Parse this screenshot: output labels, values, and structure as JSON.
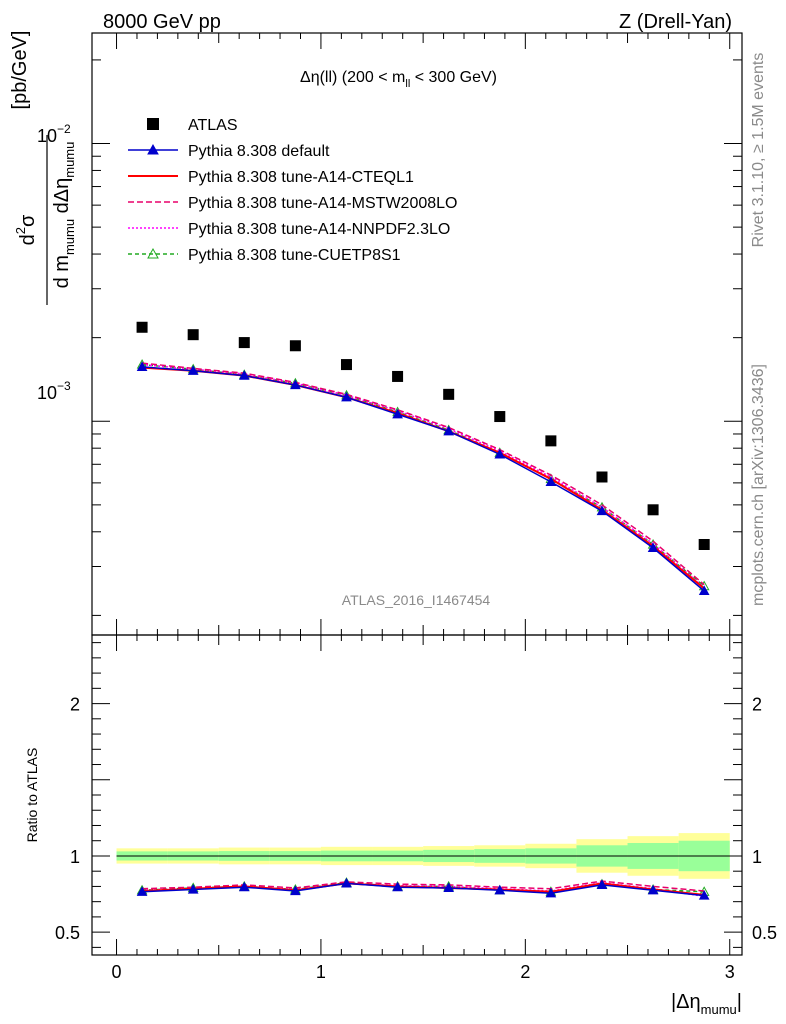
{
  "header": {
    "left": "8000 GeV pp",
    "right": "Z (Drell-Yan)"
  },
  "side_labels": {
    "rivet": "Rivet 3.1.10, ≥ 1.5M events",
    "mcplots": "mcplots.cern.ch [arXiv:1306.3436]"
  },
  "watermark": "ATLAS_2016_I1467454",
  "colors": {
    "atlas": "#000000",
    "default": "#0000cc",
    "cteql1": "#ff0000",
    "mstw": "#e8006a",
    "nnpdf": "#ff00ff",
    "cuetp": "#22aa22",
    "band_yellow": "#ffff99",
    "band_green": "#99ff99"
  },
  "chart_data": [
    {
      "type": "scatter",
      "panel": "main",
      "title": {
        "delta": "Δη(ll) (200 < m",
        "sub": "ll",
        "tail": " < 300 GeV)"
      },
      "ylabel": {
        "d2": "d",
        "sup2": "2",
        "sigma": "σ",
        "denom_d": "d m",
        "denom_sub1": "mumu",
        "denom_deta": " dΔη",
        "denom_sub2": "mumu",
        "unit": "[pb/GeV]"
      },
      "y_scale": "log",
      "ylim": [
        0.00017,
        0.025
      ],
      "xlim": [
        -0.12,
        3.06
      ],
      "y_tick_labels": {
        "major": [
          "10",
          "10"
        ],
        "major_exp": [
          "−3",
          "−2"
        ]
      },
      "x": [
        0.125,
        0.375,
        0.625,
        0.875,
        1.125,
        1.375,
        1.625,
        1.875,
        2.125,
        2.375,
        2.625,
        2.875
      ],
      "series": [
        {
          "name": "ATLAS",
          "key": "atlas",
          "marker": "square",
          "values": [
            0.00218,
            0.00205,
            0.00192,
            0.00187,
            0.0016,
            0.00145,
            0.00125,
            0.00104,
            0.00085,
            0.00063,
            0.00048,
            0.00036
          ]
        },
        {
          "name": "Pythia 8.308 default",
          "key": "default",
          "marker": "triangle",
          "dash": "",
          "values": [
            0.00157,
            0.00152,
            0.00146,
            0.00135,
            0.00122,
            0.00106,
            0.00092,
            0.00076,
            0.000605,
            0.000475,
            0.00035,
            0.000245
          ]
        },
        {
          "name": "Pythia 8.308 tune-A14-CTEQL1",
          "key": "cteql1",
          "marker": "none",
          "dash": "",
          "values": [
            0.00156,
            0.00152,
            0.00146,
            0.00135,
            0.00122,
            0.00107,
            0.00092,
            0.00077,
            0.00062,
            0.00048,
            0.000355,
            0.00025
          ]
        },
        {
          "name": "Pythia 8.308 tune-A14-MSTW2008LO",
          "key": "mstw",
          "marker": "none",
          "dash": "6,3",
          "values": [
            0.00162,
            0.00155,
            0.00149,
            0.00138,
            0.00125,
            0.0011,
            0.00095,
            0.00079,
            0.00064,
            0.0005,
            0.00037,
            0.000258
          ]
        },
        {
          "name": "Pythia 8.308 tune-A14-NNPDF2.3LO",
          "key": "nnpdf",
          "marker": "none",
          "dash": "2,2",
          "values": [
            0.0016,
            0.00154,
            0.00148,
            0.00137,
            0.00124,
            0.00109,
            0.00094,
            0.00078,
            0.00063,
            0.00049,
            0.000362,
            0.000252
          ]
        },
        {
          "name": "Pythia 8.308 tune-CUETP8S1",
          "key": "cuetp",
          "marker": "open-triangle",
          "dash": "4,3",
          "values": [
            0.0016,
            0.00154,
            0.00147,
            0.00137,
            0.00124,
            0.00108,
            0.00093,
            0.00077,
            0.00062,
            0.00049,
            0.00036,
            0.000255
          ]
        }
      ]
    },
    {
      "type": "line",
      "panel": "ratio",
      "ylabel": "Ratio to ATLAS",
      "xlabel": {
        "pre": "|Δη",
        "sub": "mumu",
        "post": "|"
      },
      "ylim": [
        0.35,
        2.45
      ],
      "xlim": [
        -0.12,
        3.06
      ],
      "y_ticks": [
        0.5,
        1,
        2
      ],
      "y_tick_labels": [
        "0.5",
        "1",
        "2"
      ],
      "x_ticks": [
        0,
        1,
        2,
        3
      ],
      "x_tick_labels": [
        "0",
        "1",
        "2",
        "3"
      ],
      "bin_edges": [
        0,
        0.25,
        0.5,
        0.75,
        1.0,
        1.25,
        1.5,
        1.75,
        2.0,
        2.25,
        2.5,
        2.75,
        3.0
      ],
      "band_yellow_halfwidth": [
        0.05,
        0.05,
        0.055,
        0.055,
        0.06,
        0.06,
        0.065,
        0.07,
        0.08,
        0.11,
        0.13,
        0.15
      ],
      "band_green_halfwidth": [
        0.03,
        0.03,
        0.032,
        0.032,
        0.035,
        0.035,
        0.04,
        0.045,
        0.05,
        0.07,
        0.085,
        0.1
      ],
      "series": [
        {
          "name": "Pythia 8.308 default",
          "key": "default",
          "marker": "triangle",
          "dash": "",
          "values": [
            0.765,
            0.78,
            0.795,
            0.77,
            0.82,
            0.795,
            0.79,
            0.775,
            0.755,
            0.81,
            0.775,
            0.74
          ]
        },
        {
          "name": "Pythia 8.308 tune-A14-CTEQL1",
          "key": "cteql1",
          "marker": "none",
          "dash": "",
          "values": [
            0.77,
            0.785,
            0.8,
            0.775,
            0.82,
            0.8,
            0.79,
            0.78,
            0.765,
            0.82,
            0.78,
            0.745
          ]
        },
        {
          "name": "Pythia 8.308 tune-A14-MSTW2008LO",
          "key": "mstw",
          "marker": "none",
          "dash": "6,3",
          "values": [
            0.785,
            0.795,
            0.81,
            0.79,
            0.83,
            0.815,
            0.81,
            0.795,
            0.785,
            0.835,
            0.8,
            0.77
          ]
        },
        {
          "name": "Pythia 8.308 tune-A14-NNPDF2.3LO",
          "key": "nnpdf",
          "marker": "none",
          "dash": "2,2",
          "values": [
            0.775,
            0.785,
            0.8,
            0.78,
            0.82,
            0.805,
            0.8,
            0.785,
            0.77,
            0.825,
            0.785,
            0.735
          ]
        },
        {
          "name": "Pythia 8.308 tune-CUETP8S1",
          "key": "cuetp",
          "marker": "open-triangle",
          "dash": "4,3",
          "values": [
            0.775,
            0.79,
            0.8,
            0.78,
            0.825,
            0.8,
            0.8,
            0.775,
            0.765,
            0.815,
            0.78,
            0.765
          ]
        }
      ]
    }
  ]
}
